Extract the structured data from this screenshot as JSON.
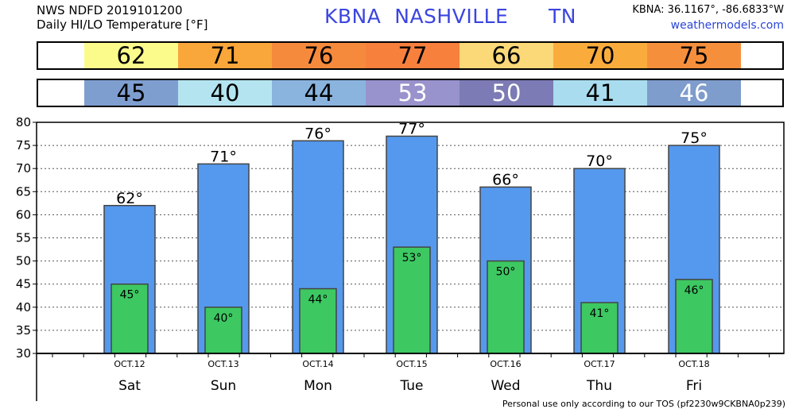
{
  "header": {
    "title_line1": "NWS NDFD 2019101200",
    "title_line2": "Daily HI/LO Temperature [°F]",
    "station": "KBNA  NASHVILLE      TN",
    "coords": "KBNA: 36.1167°, -86.6833°W",
    "site": "weathermodels.com"
  },
  "strips": {
    "hi": [
      {
        "value": "62",
        "bg": "#fbfb8c",
        "fg": "#000000"
      },
      {
        "value": "71",
        "bg": "#f9a63a",
        "fg": "#000000"
      },
      {
        "value": "76",
        "bg": "#f68a3c",
        "fg": "#000000"
      },
      {
        "value": "77",
        "bg": "#f7803d",
        "fg": "#000000"
      },
      {
        "value": "66",
        "bg": "#fbd878",
        "fg": "#000000"
      },
      {
        "value": "70",
        "bg": "#f9ac3c",
        "fg": "#000000"
      },
      {
        "value": "75",
        "bg": "#f68f3c",
        "fg": "#000000"
      }
    ],
    "lo": [
      {
        "value": "45",
        "bg": "#7f9ed0",
        "fg": "#000000"
      },
      {
        "value": "40",
        "bg": "#b4e4f0",
        "fg": "#000000"
      },
      {
        "value": "44",
        "bg": "#8ab4de",
        "fg": "#000000"
      },
      {
        "value": "53",
        "bg": "#9893cc",
        "fg": "#ffffff"
      },
      {
        "value": "50",
        "bg": "#7c7bb5",
        "fg": "#ffffff"
      },
      {
        "value": "41",
        "bg": "#a9dcef",
        "fg": "#000000"
      },
      {
        "value": "46",
        "bg": "#7e9ccc",
        "fg": "#ffffff"
      }
    ]
  },
  "chart_data": {
    "type": "bar",
    "categories": [
      "Sat",
      "Sun",
      "Mon",
      "Tue",
      "Wed",
      "Thu",
      "Fri"
    ],
    "dates": [
      "OCT.12",
      "OCT.13",
      "OCT.14",
      "OCT.15",
      "OCT.16",
      "OCT.17",
      "OCT.18"
    ],
    "series": [
      {
        "name": "HI",
        "values": [
          62,
          71,
          76,
          77,
          66,
          70,
          75
        ],
        "color": "#5599ee"
      },
      {
        "name": "LO",
        "values": [
          45,
          40,
          44,
          53,
          50,
          41,
          46
        ],
        "color": "#3dc862"
      }
    ],
    "value_labels": {
      "hi": [
        "62°",
        "71°",
        "76°",
        "77°",
        "66°",
        "70°",
        "75°"
      ],
      "lo": [
        "45°",
        "40°",
        "44°",
        "53°",
        "50°",
        "41°",
        "46°"
      ]
    },
    "yticks": [
      30,
      35,
      40,
      45,
      50,
      55,
      60,
      65,
      70,
      75,
      80
    ],
    "ylim": [
      30,
      80
    ],
    "grid": true,
    "title": "",
    "xlabel": "",
    "ylabel": ""
  },
  "footer": "Personal use only according to our TOS (pf2230w9CKBNA0p239)"
}
